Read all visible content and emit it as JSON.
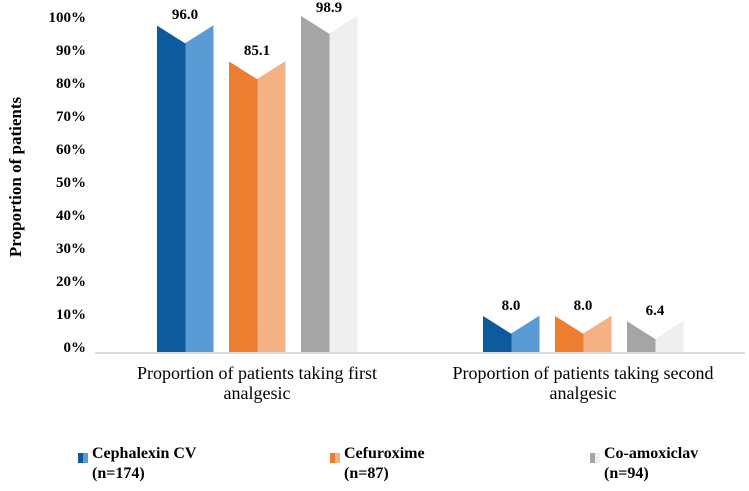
{
  "page": {
    "background": "#ffffff",
    "text_color": "#000000"
  },
  "chart_data": {
    "type": "bar",
    "bar_style": "chevron-split-two-tone",
    "title": "",
    "ylabel": "Proportion of patients",
    "xlabel": "",
    "ylim": [
      0,
      100
    ],
    "ytick_step": 10,
    "yticks": [
      "100%",
      "90%",
      "80%",
      "70%",
      "60%",
      "50%",
      "40%",
      "30%",
      "20%",
      "10%",
      "0%"
    ],
    "ytick_values": [
      100,
      90,
      80,
      70,
      60,
      50,
      40,
      30,
      20,
      10,
      0
    ],
    "grid": false,
    "axis_line_color": "#D9D9D9",
    "legend_position": "bottom",
    "categories": [
      "Proportion of patients taking first analgesic",
      "Proportion of patients taking second analgesic"
    ],
    "series": [
      {
        "name": "Cephalexin CV (n=174)",
        "legend_lines": [
          "Cephalexin CV",
          "(n=174)"
        ],
        "color_dark": "#0D5A9C",
        "color_light": "#5B9BD5",
        "values": [
          96.0,
          8.0
        ],
        "labels": [
          "96.0",
          "8.0"
        ]
      },
      {
        "name": "Cefuroxime (n=87)",
        "legend_lines": [
          "Cefuroxime",
          "(n=87)"
        ],
        "color_dark": "#ED7D31",
        "color_light": "#F4B183",
        "values": [
          85.1,
          8.0
        ],
        "labels": [
          "85.1",
          "8.0"
        ]
      },
      {
        "name": "Co-amoxiclav (n=94)",
        "legend_lines": [
          "Co-amoxiclav",
          "(n=94)"
        ],
        "color_dark": "#A5A5A5",
        "color_light": "#EFEFEF",
        "values": [
          98.9,
          6.4
        ],
        "labels": [
          "98.9",
          "6.4"
        ]
      }
    ]
  }
}
